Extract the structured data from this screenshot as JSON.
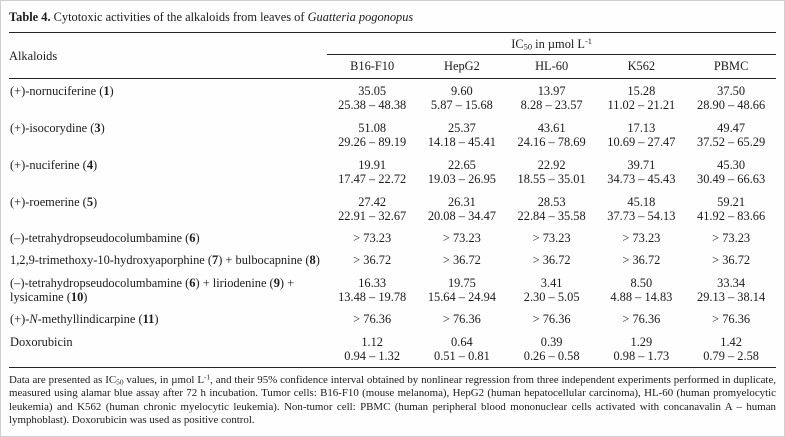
{
  "caption_parts": [
    {
      "t": "Table 4.",
      "b": true
    },
    {
      "t": " Cytotoxic activities of the alkaloids from leaves of "
    },
    {
      "t": "Guatteria pogonopus",
      "i": true
    }
  ],
  "table": {
    "row_header": "Alkaloids",
    "group_header_parts": [
      {
        "t": "IC"
      },
      {
        "t": "50",
        "sub": true
      },
      {
        "t": " in µmol L"
      },
      {
        "t": "-1",
        "sup": true
      }
    ],
    "columns": [
      "B16-F10",
      "HepG2",
      "HL-60",
      "K562",
      "PBMC"
    ],
    "rows": [
      {
        "name": [
          {
            "t": "(+)-nornuciferine ("
          },
          {
            "t": "1",
            "b": true
          },
          {
            "t": ")"
          }
        ],
        "cells": [
          {
            "ic50": "35.05",
            "ci": "25.38 – 48.38"
          },
          {
            "ic50": "9.60",
            "ci": "5.87 – 15.68"
          },
          {
            "ic50": "13.97",
            "ci": "8.28 – 23.57"
          },
          {
            "ic50": "15.28",
            "ci": "11.02 – 21.21"
          },
          {
            "ic50": "37.50",
            "ci": "28.90 – 48.66"
          }
        ]
      },
      {
        "name": [
          {
            "t": "(+)-isocorydine ("
          },
          {
            "t": "3",
            "b": true
          },
          {
            "t": ")"
          }
        ],
        "cells": [
          {
            "ic50": "51.08",
            "ci": "29.26 – 89.19"
          },
          {
            "ic50": "25.37",
            "ci": "14.18 – 45.41"
          },
          {
            "ic50": "43.61",
            "ci": "24.16 – 78.69"
          },
          {
            "ic50": "17.13",
            "ci": "10.69 – 27.47"
          },
          {
            "ic50": "49.47",
            "ci": "37.52 – 65.29"
          }
        ]
      },
      {
        "name": [
          {
            "t": "(+)-nuciferine ("
          },
          {
            "t": "4",
            "b": true
          },
          {
            "t": ")"
          }
        ],
        "cells": [
          {
            "ic50": "19.91",
            "ci": "17.47 – 22.72"
          },
          {
            "ic50": "22.65",
            "ci": "19.03 – 26.95"
          },
          {
            "ic50": "22.92",
            "ci": "18.55 – 35.01"
          },
          {
            "ic50": "39.71",
            "ci": "34.73 – 45.43"
          },
          {
            "ic50": "45.30",
            "ci": "30.49 – 66.63"
          }
        ]
      },
      {
        "name": [
          {
            "t": "(+)-roemerine ("
          },
          {
            "t": "5",
            "b": true
          },
          {
            "t": ")"
          }
        ],
        "cells": [
          {
            "ic50": "27.42",
            "ci": "22.91 – 32.67"
          },
          {
            "ic50": "26.31",
            "ci": "20.08 – 34.47"
          },
          {
            "ic50": "28.53",
            "ci": "22.84 – 35.58"
          },
          {
            "ic50": "45.18",
            "ci": "37.73 – 54.13"
          },
          {
            "ic50": "59.21",
            "ci": "41.92 – 83.66"
          }
        ]
      },
      {
        "name": [
          {
            "t": "(–)-tetrahydropseudocolumbamine ("
          },
          {
            "t": "6",
            "b": true
          },
          {
            "t": ")"
          }
        ],
        "cells": [
          {
            "ic50": "> 73.23"
          },
          {
            "ic50": "> 73.23"
          },
          {
            "ic50": "> 73.23"
          },
          {
            "ic50": "> 73.23"
          },
          {
            "ic50": "> 73.23"
          }
        ]
      },
      {
        "name": [
          {
            "t": "1,2,9-trimethoxy-10-hydroxyaporphine ("
          },
          {
            "t": "7",
            "b": true
          },
          {
            "t": ") + bulbocapnine ("
          },
          {
            "t": "8",
            "b": true
          },
          {
            "t": ")"
          }
        ],
        "cells": [
          {
            "ic50": "> 36.72"
          },
          {
            "ic50": "> 36.72"
          },
          {
            "ic50": "> 36.72"
          },
          {
            "ic50": "> 36.72"
          },
          {
            "ic50": "> 36.72"
          }
        ]
      },
      {
        "name": [
          {
            "t": "(–)-tetrahydropseudocolumbamine ("
          },
          {
            "t": "6",
            "b": true
          },
          {
            "t": ") + liriodenine ("
          },
          {
            "t": "9",
            "b": true
          },
          {
            "t": ") + lysicamine ("
          },
          {
            "t": "10",
            "b": true
          },
          {
            "t": ")"
          }
        ],
        "cells": [
          {
            "ic50": "16.33",
            "ci": "13.48 – 19.78"
          },
          {
            "ic50": "19.75",
            "ci": "15.64 – 24.94"
          },
          {
            "ic50": "3.41",
            "ci": "2.30 – 5.05"
          },
          {
            "ic50": "8.50",
            "ci": "4.88 – 14.83"
          },
          {
            "ic50": "33.34",
            "ci": "29.13 – 38.14"
          }
        ]
      },
      {
        "name": [
          {
            "t": "(+)-"
          },
          {
            "t": "N",
            "i": true
          },
          {
            "t": "-methyllindicarpine ("
          },
          {
            "t": "11",
            "b": true
          },
          {
            "t": ")"
          }
        ],
        "cells": [
          {
            "ic50": "> 76.36"
          },
          {
            "ic50": "> 76.36"
          },
          {
            "ic50": "> 76.36"
          },
          {
            "ic50": "> 76.36"
          },
          {
            "ic50": "> 76.36"
          }
        ]
      },
      {
        "name": [
          {
            "t": "Doxorubicin"
          }
        ],
        "cells": [
          {
            "ic50": "1.12",
            "ci": "0.94 – 1.32"
          },
          {
            "ic50": "0.64",
            "ci": "0.51 – 0.81"
          },
          {
            "ic50": "0.39",
            "ci": "0.26 – 0.58"
          },
          {
            "ic50": "1.29",
            "ci": "0.98 – 1.73"
          },
          {
            "ic50": "1.42",
            "ci": "0.79 – 2.58"
          }
        ]
      }
    ]
  },
  "footnote_parts": [
    {
      "t": "Data are presented as IC"
    },
    {
      "t": "50",
      "sub": true
    },
    {
      "t": " values, in µmol L"
    },
    {
      "t": "-1",
      "sup": true
    },
    {
      "t": ", and their 95% confidence interval obtained by nonlinear regression from three independent experiments performed in duplicate, measured using alamar blue assay after 72 h incubation. Tumor cells: B16-F10 (mouse melanoma), HepG2 (human hepatocellular carcinoma), HL-60 (human promyelocytic leukemia) and K562 (human chronic myelocytic leukemia). Non-tumor cell: PBMC (human peripheral blood mononuclear cells activated with concanavalin A – human lymphoblast). Doxorubicin was used as positive control."
    }
  ]
}
